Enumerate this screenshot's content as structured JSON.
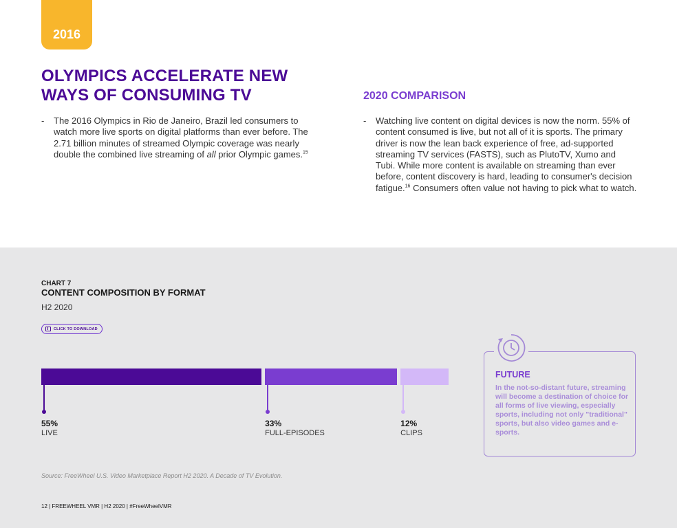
{
  "year_tab": "2016",
  "headline": "OLYMPICS ACCELERATE NEW WAYS OF CONSUMING TV",
  "left_bullet": {
    "dash": "-",
    "text_part1": "The 2016 Olympics in Rio de Janeiro, Brazil led consumers to watch more live sports on digital platforms than ever before. The 2.71 billion minutes of streamed Olympic coverage was nearly double the combined live streaming of ",
    "emphasis": "all",
    "text_part2": " prior Olympic games.",
    "footnote": "15"
  },
  "comparison": {
    "title": "2020 COMPARISON",
    "dash": "-",
    "text_part1": "Watching live content on digital devices is now the norm. 55% of content consumed is live, but not all of it is sports. The primary driver is now the lean back experience of free, ad-supported streaming TV services (FASTS), such as PlutoTV, Xumo and Tubi. While more content is available on streaming than ever before, content discovery is hard, leading to consumer's decision fatigue.",
    "footnote": "16",
    "text_part2": " Consumers often value not having to pick what to watch."
  },
  "chart": {
    "number": "CHART 7",
    "title": "CONTENT COMPOSITION BY FORMAT",
    "subtitle": "H2 2020",
    "download_label": "CLICK TO DOWNLOAD",
    "download_icon": "download-icon"
  },
  "chart_data": {
    "type": "bar",
    "orientation": "horizontal-stacked",
    "title": "CONTENT COMPOSITION BY FORMAT",
    "subtitle": "H2 2020",
    "categories": [
      "LIVE",
      "FULL-EPISODES",
      "CLIPS"
    ],
    "values": [
      55,
      33,
      12
    ],
    "value_labels": [
      "55%",
      "33%",
      "12%"
    ],
    "colors": [
      "#4b0a96",
      "#7a3dd0",
      "#d3b8f8"
    ],
    "unit": "%"
  },
  "future": {
    "icon": "clock-icon",
    "title": "FUTURE",
    "text": "In the not-so-distant future, streaming will become a destination of choice for all forms of live viewing, especially sports, including not only \"traditional\" sports, but also video games and e-sports."
  },
  "source": "Source: FreeWheel U.S. Video Marketplace Report H2 2020. A Decade of TV Evolution.",
  "footer": "12  |  FREEWHEEL VMR  |  H2 2020  |  #FreeWheelVMR",
  "colors": {
    "accent_yellow": "#f8b62c",
    "deep_purple": "#4b0a96",
    "mid_purple": "#7a3dd0",
    "light_purple": "#d3b8f8",
    "section_gray": "#e7e7e8"
  }
}
